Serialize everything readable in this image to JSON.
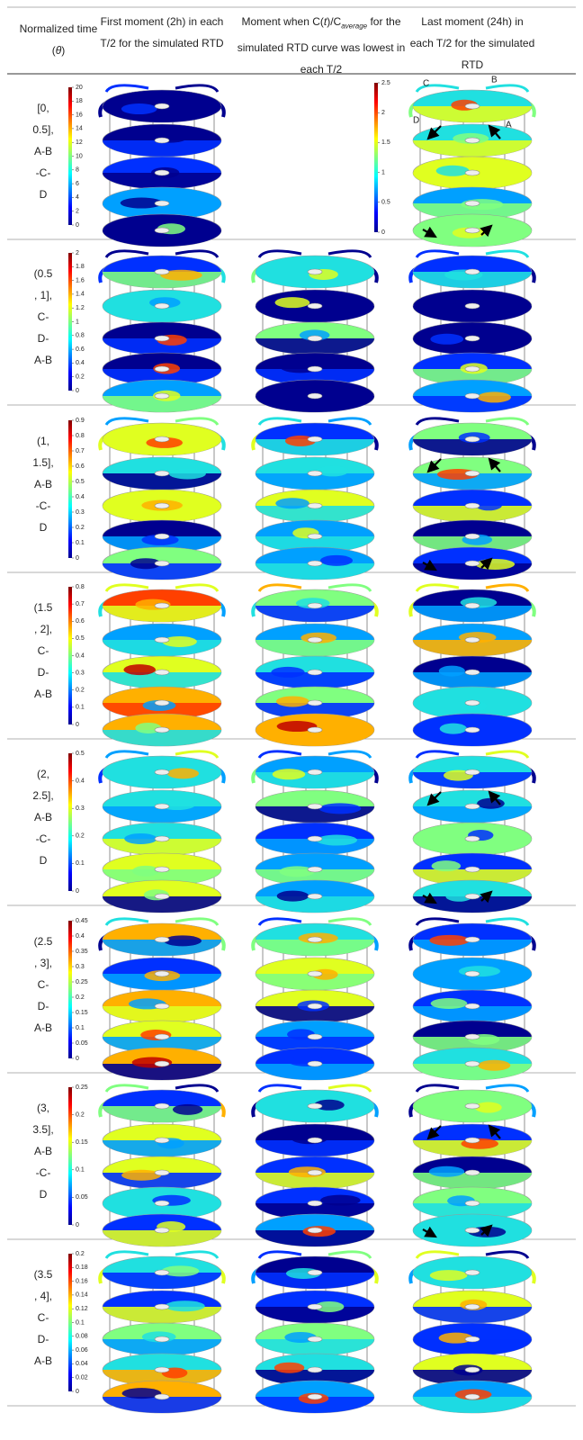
{
  "header": {
    "time": [
      "Normalized time (",
      "θ",
      ")"
    ],
    "first": "First moment (2h) in each T/2 for the simulated RTD",
    "lowest": [
      "Moment when C(",
      "t",
      ")/C",
      "average",
      " for the simulated RTD curve was lowest in each T/2"
    ],
    "last": "Last moment (24h) in each T/2 for the simulated RTD"
  },
  "rows": [
    {
      "label": [
        "[0,",
        "0.5],",
        "A-B",
        "-C-",
        "D"
      ],
      "scale": [
        "0",
        "2",
        "4",
        "6",
        "8",
        "10",
        "12",
        "14",
        "16",
        "18",
        "20"
      ],
      "scale_last": [
        "0",
        "0.5",
        "1",
        "1.5",
        "2",
        "2.5"
      ],
      "markers": [
        "A",
        "B",
        "C",
        "D"
      ]
    },
    {
      "label": [
        "(0.5",
        ", 1],",
        "C-",
        "D-",
        "A-B"
      ],
      "scale": [
        "0",
        "0.2",
        "0.4",
        "0.6",
        "0.8",
        "1",
        "1.2",
        "1.4",
        "1.6",
        "1.8",
        "2"
      ]
    },
    {
      "label": [
        "(1,",
        "1.5],",
        "A-B",
        "-C-",
        "D"
      ],
      "scale": [
        "0",
        "0.1",
        "0.2",
        "0.3",
        "0.4",
        "0.5",
        "0.6",
        "0.7",
        "0.8",
        "0.9"
      ]
    },
    {
      "label": [
        "(1.5",
        ", 2],",
        "C-",
        "D-",
        "A-B"
      ],
      "scale": [
        "0",
        "0.1",
        "0.2",
        "0.3",
        "0.4",
        "0.5",
        "0.6",
        "0.7",
        "0.8"
      ]
    },
    {
      "label": [
        "(2,",
        "2.5],",
        "A-B",
        "-C-",
        "D"
      ],
      "scale": [
        "0",
        "0.1",
        "0.2",
        "0.3",
        "0.4",
        "0.5"
      ]
    },
    {
      "label": [
        "(2.5",
        ", 3],",
        "C-",
        "D-",
        "A-B"
      ],
      "scale": [
        "0",
        "0.05",
        "0.1",
        "0.15",
        "0.2",
        "0.25",
        "0.3",
        "0.35",
        "0.4",
        "0.45"
      ]
    },
    {
      "label": [
        "(3,",
        "3.5],",
        "A-B",
        "-C-",
        "D"
      ],
      "scale": [
        "0",
        "0.05",
        "0.1",
        "0.15",
        "0.2",
        "0.25"
      ]
    },
    {
      "label": [
        "(3.5",
        ", 4],",
        "C-",
        "D-",
        "A-B"
      ],
      "scale": [
        "0",
        "0.02",
        "0.04",
        "0.06",
        "0.08",
        "0.1",
        "0.12",
        "0.14",
        "0.16",
        "0.18",
        "0.2"
      ]
    }
  ]
}
